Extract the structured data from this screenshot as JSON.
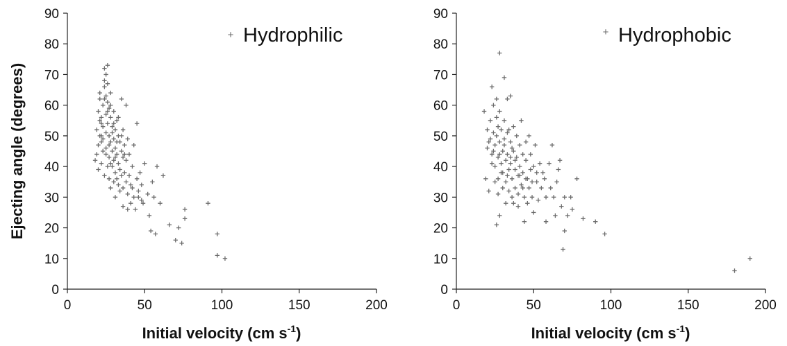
{
  "colors": {
    "marker": "#6b6b6b",
    "axis": "#222222",
    "text": "#111111"
  },
  "chart_data": [
    {
      "type": "scatter",
      "legend": "Hydrophilic",
      "legend_position": "top-right",
      "ylabel": "Ejecting angle (degrees)",
      "xlabel_main": "Initial velocity (cm s",
      "xlabel_sup": "-1",
      "xlabel_end": ")",
      "xlim": [
        0,
        200
      ],
      "ylim": [
        0,
        90
      ],
      "xticks": [
        "0",
        "50",
        "100",
        "150",
        "200"
      ],
      "yticks": [
        "0",
        "10",
        "20",
        "30",
        "40",
        "50",
        "60",
        "70",
        "80",
        "90"
      ],
      "grid": false,
      "points": [
        [
          18,
          42
        ],
        [
          19,
          44
        ],
        [
          20,
          47
        ],
        [
          20,
          58
        ],
        [
          21,
          62
        ],
        [
          21,
          64
        ],
        [
          21,
          55
        ],
        [
          22,
          50
        ],
        [
          22,
          48
        ],
        [
          22,
          56
        ],
        [
          23,
          60
        ],
        [
          23,
          53
        ],
        [
          23,
          45
        ],
        [
          24,
          66
        ],
        [
          24,
          68
        ],
        [
          24,
          72
        ],
        [
          25,
          70
        ],
        [
          25,
          63
        ],
        [
          25,
          57
        ],
        [
          25,
          51
        ],
        [
          25,
          46
        ],
        [
          26,
          73
        ],
        [
          26,
          67
        ],
        [
          26,
          61
        ],
        [
          26,
          54
        ],
        [
          27,
          59
        ],
        [
          27,
          50
        ],
        [
          27,
          43
        ],
        [
          28,
          64
        ],
        [
          28,
          56
        ],
        [
          28,
          48
        ],
        [
          29,
          53
        ],
        [
          29,
          45
        ],
        [
          29,
          40
        ],
        [
          30,
          58
        ],
        [
          30,
          49
        ],
        [
          30,
          42
        ],
        [
          31,
          52
        ],
        [
          31,
          46
        ],
        [
          31,
          38
        ],
        [
          32,
          55
        ],
        [
          32,
          44
        ],
        [
          32,
          36
        ],
        [
          33,
          50
        ],
        [
          33,
          41
        ],
        [
          33,
          34
        ],
        [
          34,
          48
        ],
        [
          34,
          39
        ],
        [
          35,
          62
        ],
        [
          35,
          45
        ],
        [
          35,
          37
        ],
        [
          36,
          52
        ],
        [
          36,
          43
        ],
        [
          36,
          33
        ],
        [
          37,
          47
        ],
        [
          37,
          38
        ],
        [
          38,
          60
        ],
        [
          38,
          42
        ],
        [
          38,
          35
        ],
        [
          39,
          49
        ],
        [
          39,
          31
        ],
        [
          40,
          44
        ],
        [
          40,
          37
        ],
        [
          41,
          28
        ],
        [
          42,
          40
        ],
        [
          42,
          33
        ],
        [
          43,
          47
        ],
        [
          44,
          26
        ],
        [
          45,
          36
        ],
        [
          45,
          54
        ],
        [
          46,
          30
        ],
        [
          47,
          38
        ],
        [
          48,
          34
        ],
        [
          49,
          28
        ],
        [
          50,
          41
        ],
        [
          52,
          31
        ],
        [
          53,
          24
        ],
        [
          54,
          19
        ],
        [
          55,
          35
        ],
        [
          56,
          30
        ],
        [
          57,
          18
        ],
        [
          58,
          40
        ],
        [
          60,
          28
        ],
        [
          62,
          37
        ],
        [
          66,
          21
        ],
        [
          70,
          16
        ],
        [
          72,
          20
        ],
        [
          74,
          15
        ],
        [
          76,
          26
        ],
        [
          76,
          23
        ],
        [
          91,
          28
        ],
        [
          97,
          18
        ],
        [
          97,
          11
        ],
        [
          102,
          10
        ],
        [
          19,
          52
        ],
        [
          20,
          39
        ],
        [
          22,
          41
        ],
        [
          24,
          37
        ],
        [
          26,
          40
        ],
        [
          27,
          36
        ],
        [
          28,
          33
        ],
        [
          30,
          35
        ],
        [
          31,
          30
        ],
        [
          34,
          32
        ],
        [
          36,
          27
        ],
        [
          39,
          26
        ],
        [
          41,
          34
        ],
        [
          43,
          30
        ],
        [
          46,
          32
        ],
        [
          48,
          29
        ],
        [
          23,
          49
        ],
        [
          27,
          47
        ],
        [
          29,
          51
        ],
        [
          32,
          48
        ],
        [
          35,
          50
        ],
        [
          37,
          44
        ],
        [
          24,
          62
        ],
        [
          26,
          58
        ],
        [
          28,
          60
        ],
        [
          30,
          54
        ],
        [
          33,
          56
        ],
        [
          21,
          50
        ],
        [
          22,
          54
        ],
        [
          25,
          44
        ],
        [
          28,
          41
        ],
        [
          31,
          43
        ]
      ]
    },
    {
      "type": "scatter",
      "legend": "Hydrophobic",
      "legend_position": "top-right",
      "xlabel_main": "Initial velocity (cm s",
      "xlabel_sup": "-1",
      "xlabel_end": ")",
      "xlim": [
        0,
        200
      ],
      "ylim": [
        0,
        90
      ],
      "xticks": [
        "0",
        "50",
        "100",
        "150",
        "200"
      ],
      "yticks": [
        "0",
        "10",
        "20",
        "30",
        "40",
        "50",
        "60",
        "70",
        "80",
        "90"
      ],
      "grid": false,
      "points": [
        [
          18,
          58
        ],
        [
          19,
          36
        ],
        [
          20,
          52
        ],
        [
          20,
          46
        ],
        [
          21,
          32
        ],
        [
          22,
          55
        ],
        [
          22,
          49
        ],
        [
          23,
          66
        ],
        [
          23,
          44
        ],
        [
          24,
          60
        ],
        [
          24,
          51
        ],
        [
          25,
          47
        ],
        [
          25,
          40
        ],
        [
          26,
          62
        ],
        [
          26,
          56
        ],
        [
          26,
          21
        ],
        [
          27,
          53
        ],
        [
          27,
          43
        ],
        [
          27,
          36
        ],
        [
          28,
          77
        ],
        [
          28,
          58
        ],
        [
          28,
          48
        ],
        [
          28,
          24
        ],
        [
          29,
          52
        ],
        [
          29,
          41
        ],
        [
          30,
          45
        ],
        [
          30,
          38
        ],
        [
          31,
          69
        ],
        [
          31,
          55
        ],
        [
          31,
          49
        ],
        [
          32,
          42
        ],
        [
          32,
          35
        ],
        [
          32,
          28
        ],
        [
          33,
          62
        ],
        [
          33,
          51
        ],
        [
          33,
          44
        ],
        [
          34,
          39
        ],
        [
          34,
          32
        ],
        [
          35,
          48
        ],
        [
          35,
          41
        ],
        [
          35,
          63
        ],
        [
          36,
          36
        ],
        [
          36,
          30
        ],
        [
          37,
          53
        ],
        [
          37,
          45
        ],
        [
          38,
          39
        ],
        [
          38,
          33
        ],
        [
          39,
          50
        ],
        [
          39,
          43
        ],
        [
          40,
          37
        ],
        [
          40,
          27
        ],
        [
          41,
          47
        ],
        [
          41,
          40
        ],
        [
          42,
          34
        ],
        [
          42,
          55
        ],
        [
          43,
          44
        ],
        [
          43,
          38
        ],
        [
          44,
          30
        ],
        [
          44,
          22
        ],
        [
          45,
          48
        ],
        [
          45,
          42
        ],
        [
          46,
          36
        ],
        [
          46,
          28
        ],
        [
          47,
          50
        ],
        [
          47,
          33
        ],
        [
          48,
          44
        ],
        [
          48,
          39
        ],
        [
          49,
          30
        ],
        [
          50,
          40
        ],
        [
          50,
          25
        ],
        [
          51,
          47
        ],
        [
          52,
          35
        ],
        [
          53,
          29
        ],
        [
          54,
          41
        ],
        [
          55,
          33
        ],
        [
          56,
          38
        ],
        [
          57,
          36
        ],
        [
          58,
          30
        ],
        [
          58,
          22
        ],
        [
          60,
          41
        ],
        [
          61,
          33
        ],
        [
          62,
          47
        ],
        [
          63,
          30
        ],
        [
          64,
          24
        ],
        [
          65,
          35
        ],
        [
          66,
          39
        ],
        [
          67,
          42
        ],
        [
          68,
          27
        ],
        [
          69,
          13
        ],
        [
          70,
          30
        ],
        [
          70,
          19
        ],
        [
          72,
          24
        ],
        [
          74,
          30
        ],
        [
          75,
          26
        ],
        [
          78,
          36
        ],
        [
          82,
          23
        ],
        [
          90,
          22
        ],
        [
          96,
          18
        ],
        [
          180,
          6
        ],
        [
          190,
          10
        ],
        [
          21,
          48
        ],
        [
          23,
          41
        ],
        [
          25,
          35
        ],
        [
          27,
          31
        ],
        [
          29,
          38
        ],
        [
          31,
          47
        ],
        [
          34,
          52
        ],
        [
          36,
          46
        ],
        [
          38,
          42
        ],
        [
          41,
          37
        ],
        [
          43,
          33
        ],
        [
          45,
          36
        ],
        [
          49,
          35
        ],
        [
          52,
          38
        ],
        [
          30,
          33
        ],
        [
          33,
          37
        ],
        [
          37,
          28
        ],
        [
          40,
          31
        ],
        [
          24,
          45
        ],
        [
          26,
          50
        ],
        [
          28,
          44
        ],
        [
          35,
          43
        ]
      ]
    }
  ]
}
